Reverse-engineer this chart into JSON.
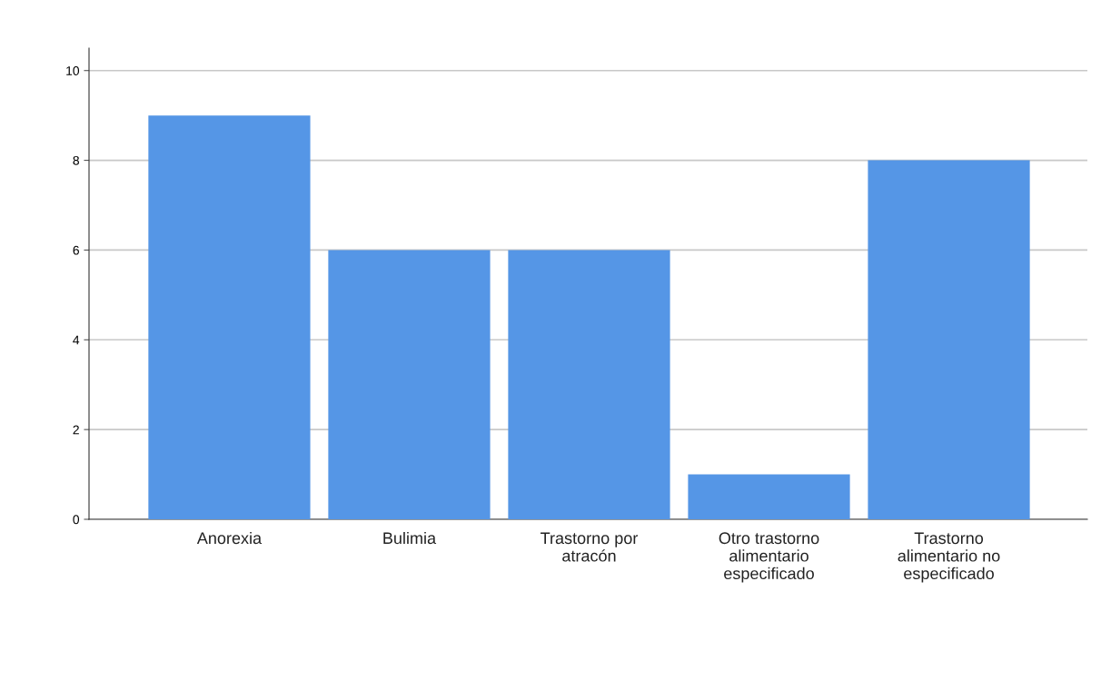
{
  "chart_data": {
    "type": "bar",
    "categories": [
      "Anorexia",
      "Bulimia",
      "Trastorno por\natracón",
      "Otro trastorno\nalimentario\nespecificado",
      "Trastorno\nalimentario no\nespecificado"
    ],
    "values": [
      9,
      6,
      6,
      1,
      8
    ],
    "color": "#5596e6",
    "ylim": [
      0,
      10.5
    ],
    "yticks": [
      0,
      2,
      4,
      6,
      8,
      10
    ],
    "grid": "y",
    "legend": false
  }
}
